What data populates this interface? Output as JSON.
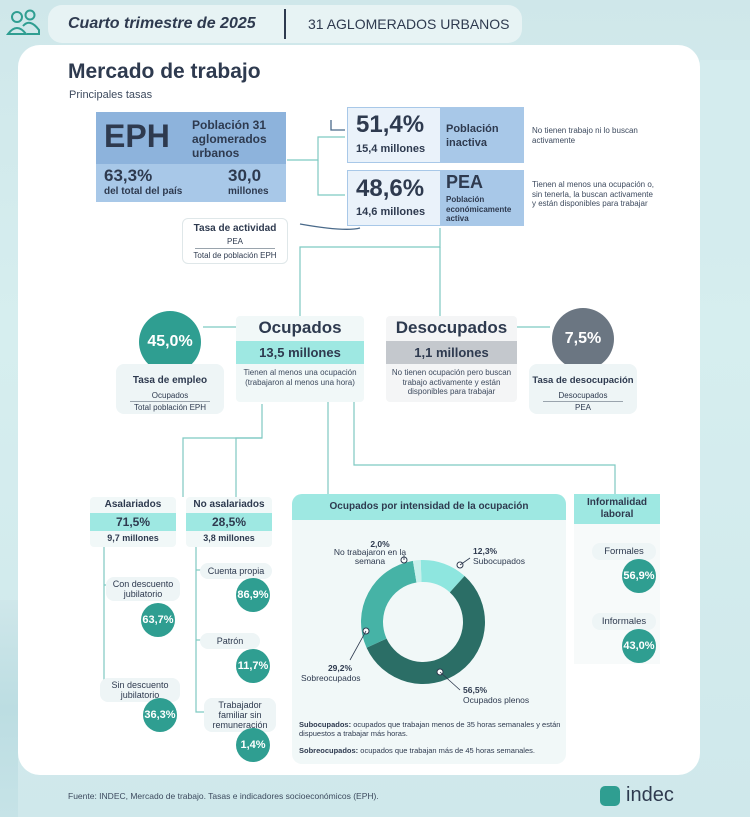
{
  "header": {
    "period": "Cuarto trimestre de 2025",
    "scope": "31 AGLOMERADOS URBANOS"
  },
  "section": {
    "title": "Mercado de trabajo",
    "subtitle": "Principales tasas"
  },
  "eph": {
    "acronym": "EPH",
    "label": "Población 31 aglomerados urbanos",
    "share_value": "63,3%",
    "share_label": "del total del país",
    "millions_value": "30,0",
    "millions_label": "millones"
  },
  "inactive": {
    "pct": "51,4%",
    "millions": "15,4 millones",
    "label": "Población inactiva",
    "desc": "No tienen trabajo ni lo buscan activamente"
  },
  "pea": {
    "pct": "48,6%",
    "millions": "14,6 millones",
    "acronym": "PEA",
    "label": "Población económicamente activa",
    "desc": "Tienen al menos una ocupación o, sin tenerla, la buscan activamente y están disponibles para trabajar"
  },
  "tasa_actividad": {
    "title": "Tasa de actividad",
    "num": "PEA",
    "den": "Total de población EPH"
  },
  "employment_rate": {
    "value": "45,0%",
    "title": "Tasa de empleo",
    "num": "Ocupados",
    "den": "Total población EPH"
  },
  "ocupados": {
    "title": "Ocupados",
    "millions": "13,5 millones",
    "desc": "Tienen al menos una ocupación (trabajaron al menos una hora)"
  },
  "desocupados": {
    "title": "Desocupados",
    "millions": "1,1 millones",
    "desc": "No tienen ocupación pero buscan trabajo activamente y están disponibles para trabajar"
  },
  "unemployment_rate": {
    "value": "7,5%",
    "title": "Tasa de desocupación",
    "num": "Desocupados",
    "den": "PEA"
  },
  "asalariados": {
    "title": "Asalariados",
    "pct": "71,5%",
    "millions": "9,7 millones",
    "items": [
      {
        "label": "Con descuento jubilatorio",
        "value": "63,7%"
      },
      {
        "label": "Sin descuento jubilatorio",
        "value": "36,3%"
      }
    ]
  },
  "no_asalariados": {
    "title": "No asalariados",
    "pct": "28,5%",
    "millions": "3,8 millones",
    "items": [
      {
        "label": "Cuenta propia",
        "value": "86,9%"
      },
      {
        "label": "Patrón",
        "value": "11,7%"
      },
      {
        "label": "Trabajador familiar sin remuneración",
        "value": "1,4%"
      }
    ]
  },
  "intensity": {
    "title": "Ocupados por intensidad de la ocupación",
    "note1_term": "Subocupados:",
    "note1_text": "ocupados que trabajan menos de 35 horas semanales y están dispuestos a trabajar más horas.",
    "note2_term": "Sobreocupados:",
    "note2_text": "ocupados que trabajan más de 45 horas semanales."
  },
  "chart_data": {
    "type": "pie",
    "donut": true,
    "title": "Ocupados por intensidad de la ocupación",
    "slices": [
      {
        "label": "Subocupados",
        "value": 12.3,
        "display": "12,3%",
        "color": "#8ee6df"
      },
      {
        "label": "Ocupados plenos",
        "value": 56.5,
        "display": "56,5%",
        "color": "#2b6e66"
      },
      {
        "label": "Sobreocupados",
        "value": 29.2,
        "display": "29,2%",
        "color": "#46b3a6"
      },
      {
        "label": "No trabajaron en la semana",
        "value": 2.0,
        "display": "2,0%",
        "color": "#c9f0ec"
      }
    ]
  },
  "informalidad": {
    "title": "Informalidad laboral",
    "items": [
      {
        "label": "Formales",
        "value": "56,9%"
      },
      {
        "label": "Informales",
        "value": "43,0%"
      }
    ]
  },
  "footer": {
    "source": "Fuente: INDEC, Mercado de trabajo. Tasas e indicadores socioeconómicos (EPH).",
    "brand": "indec"
  },
  "colors": {
    "accent_teal": "#2f9e91",
    "light_teal": "#9ee8e2",
    "blue": "#a8c8e8",
    "dark_text": "#2e3a4f",
    "gray": "#6b7682"
  }
}
